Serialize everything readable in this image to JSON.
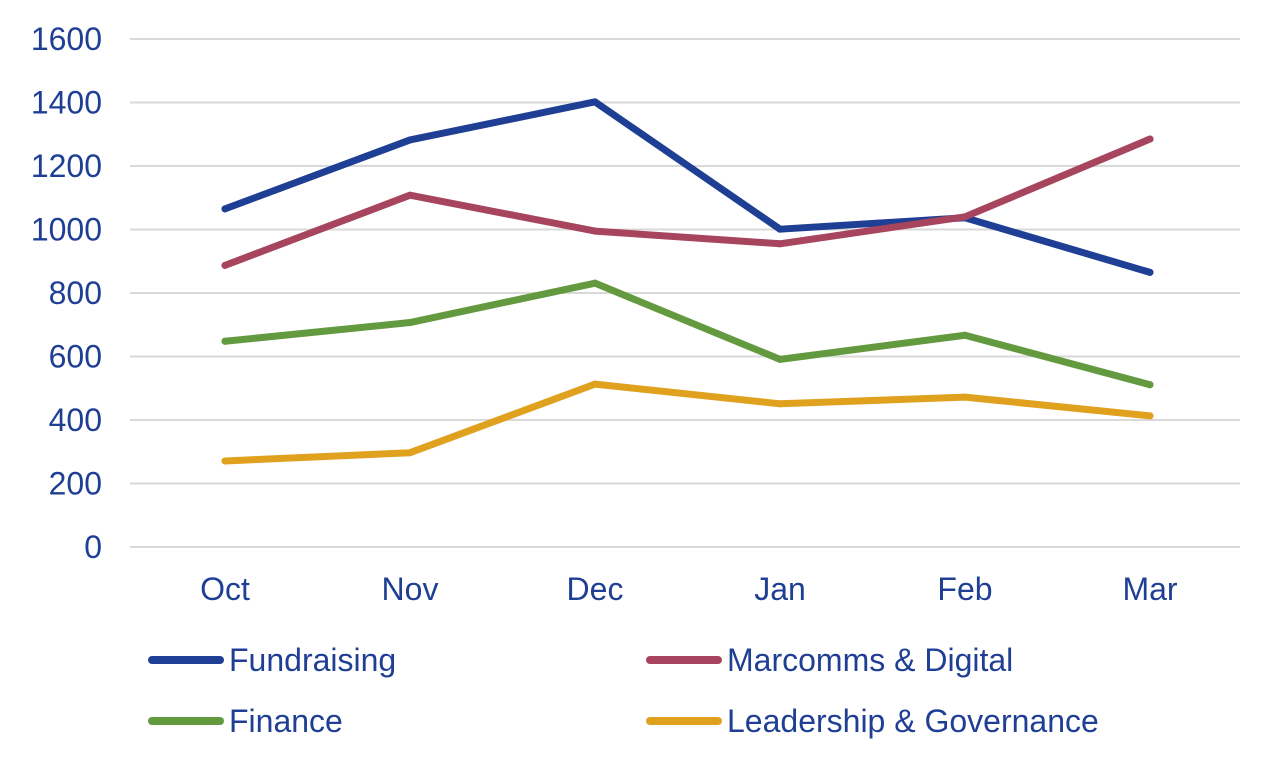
{
  "chart_data": {
    "type": "line",
    "title": "",
    "xlabel": "",
    "ylabel": "",
    "categories": [
      "Oct",
      "Nov",
      "Dec",
      "Jan",
      "Feb",
      "Mar"
    ],
    "ylim": [
      0,
      1600
    ],
    "yticks": [
      "0",
      "200",
      "400",
      "600",
      "800",
      "1000",
      "1200",
      "1400",
      "1600"
    ],
    "grid": "horizontal",
    "legend_position": "bottom",
    "series": [
      {
        "name": "Fundraising",
        "color": "#1F3F94",
        "values": [
          1065,
          1282,
          1402,
          1001,
          1037,
          865
        ]
      },
      {
        "name": "Marcomms & Digital",
        "color": "#A8455E",
        "values": [
          887,
          1108,
          995,
          955,
          1040,
          1285
        ]
      },
      {
        "name": "Finance",
        "color": "#639A3F",
        "values": [
          648,
          707,
          831,
          591,
          667,
          511
        ]
      },
      {
        "name": "Leadership & Governance",
        "color": "#E0A11E",
        "values": [
          271,
          297,
          513,
          451,
          472,
          413
        ]
      }
    ]
  },
  "colors": {
    "text": "#1F3F94",
    "grid": "#D9D9D9"
  }
}
